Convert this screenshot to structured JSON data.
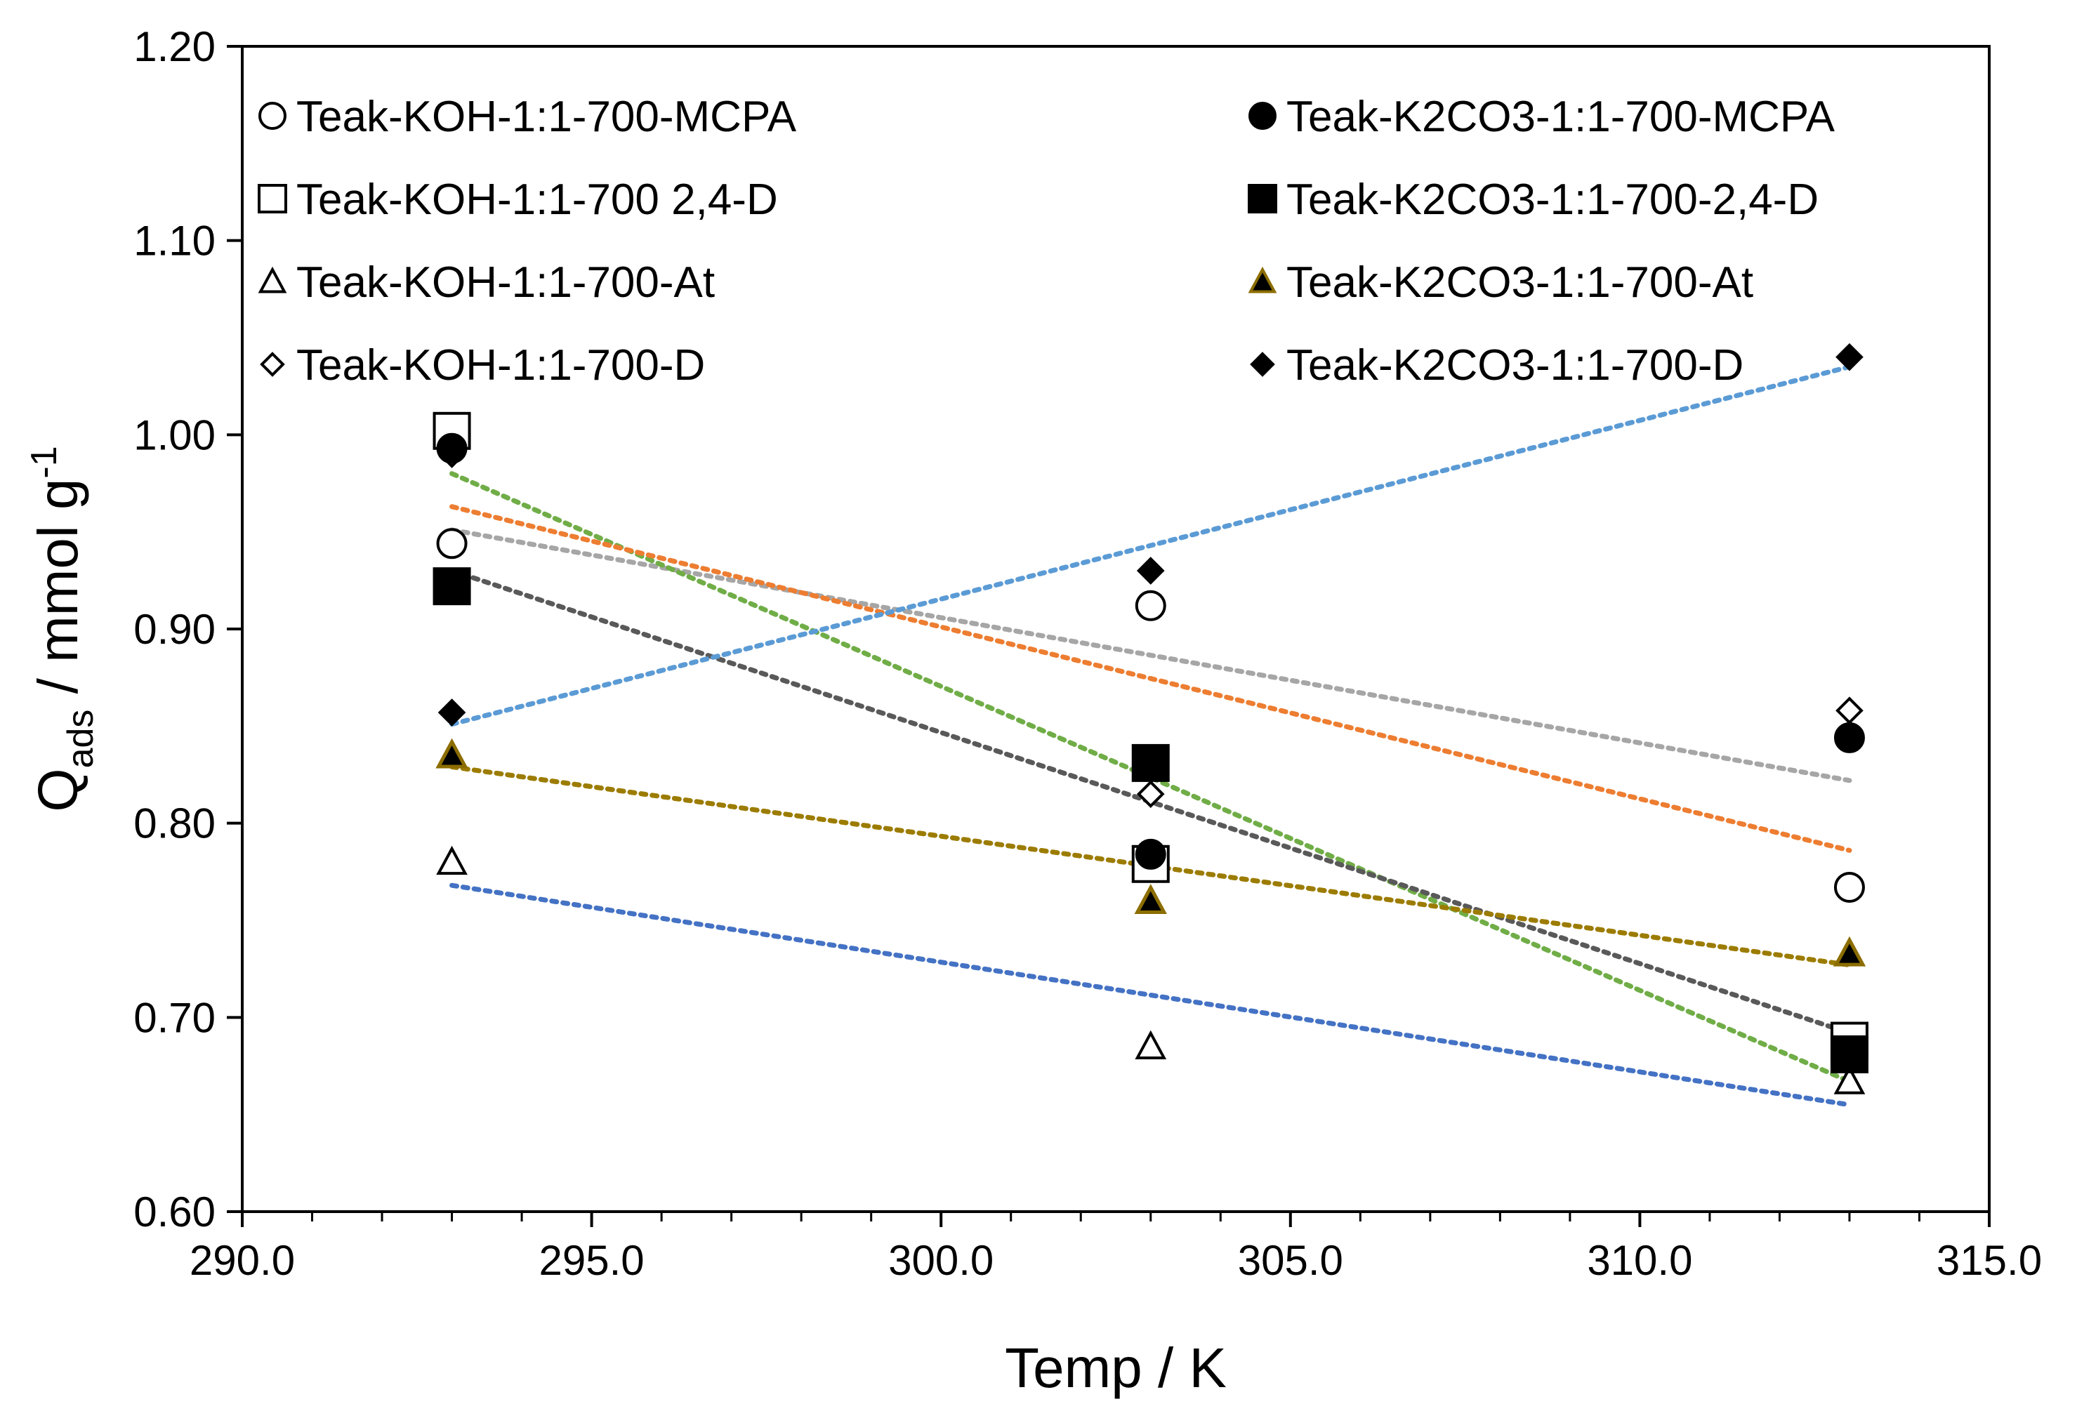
{
  "chart_data": {
    "type": "scatter",
    "xlabel": "Temp / K",
    "ylabel": {
      "main": "Q",
      "subscript": "ads",
      "unit": " / mmol g",
      "superscript": "-1"
    },
    "xlim": [
      290.0,
      315.0
    ],
    "ylim": [
      0.6,
      1.2
    ],
    "x_ticks": [
      "290.0",
      "295.0",
      "300.0",
      "305.0",
      "310.0",
      "315.0"
    ],
    "y_ticks": [
      "0.60",
      "0.70",
      "0.80",
      "0.90",
      "1.00",
      "1.10",
      "1.20"
    ],
    "grid": false,
    "legend_position": "top",
    "series": [
      {
        "name": "Teak-KOH-1:1-700-MCPA",
        "marker": "circle",
        "fill": "#ffffff",
        "stroke": "#000000",
        "x": [
          293,
          303,
          313
        ],
        "y": [
          0.944,
          0.912,
          0.767
        ],
        "trend": {
          "color": "#a6a6a6",
          "y_start": 0.951,
          "y_end": 0.822
        }
      },
      {
        "name": "Teak-KOH-1:1-700 2,4-D",
        "marker": "square",
        "fill": "#ffffff",
        "stroke": "#000000",
        "x": [
          293,
          303,
          313
        ],
        "y": [
          1.002,
          0.779,
          0.688
        ],
        "trend": {
          "color": "#70ad47",
          "y_start": 0.98,
          "y_end": 0.667
        }
      },
      {
        "name": "Teak-KOH-1:1-700-At",
        "marker": "triangle",
        "fill": "#ffffff",
        "stroke": "#000000",
        "x": [
          293,
          303,
          313
        ],
        "y": [
          0.78,
          0.685,
          0.667
        ],
        "trend": {
          "color": "#4472c4",
          "y_start": 0.768,
          "y_end": 0.655
        }
      },
      {
        "name": "Teak-KOH-1:1-700-D",
        "marker": "diamond",
        "fill": "#ffffff",
        "stroke": "#000000",
        "x": [
          293,
          303,
          313
        ],
        "y": [
          0.99,
          0.815,
          0.858
        ],
        "trend": {
          "color": "#ed7d31",
          "y_start": 0.963,
          "y_end": 0.786
        }
      },
      {
        "name": "Teak-K2CO3-1:1-700-MCPA",
        "marker": "circle",
        "fill": "#000000",
        "stroke": "#000000",
        "x": [
          293,
          303,
          313
        ],
        "y": [
          0.993,
          0.784,
          0.844
        ],
        "trend": null
      },
      {
        "name": "Teak-K2CO3-1:1-700-2,4-D",
        "marker": "square",
        "fill": "#000000",
        "stroke": "#000000",
        "x": [
          293,
          303,
          313
        ],
        "y": [
          0.922,
          0.831,
          0.681
        ],
        "trend": {
          "color": "#595959",
          "y_start": 0.93,
          "y_end": 0.692
        }
      },
      {
        "name": "Teak-K2CO3-1:1-700-At",
        "marker": "triangle",
        "fill": "#000000",
        "stroke": "#8c6d00",
        "x": [
          293,
          303,
          313
        ],
        "y": [
          0.835,
          0.76,
          0.733
        ],
        "trend": {
          "color": "#9c7c00",
          "y_start": 0.829,
          "y_end": 0.727
        }
      },
      {
        "name": "Teak-K2CO3-1:1-700-D",
        "marker": "diamond",
        "fill": "#000000",
        "stroke": "#000000",
        "x": [
          293,
          303,
          313
        ],
        "y": [
          0.857,
          0.93,
          1.04
        ],
        "trend": {
          "color": "#5b9bd5",
          "y_start": 0.851,
          "y_end": 1.035
        }
      }
    ]
  }
}
